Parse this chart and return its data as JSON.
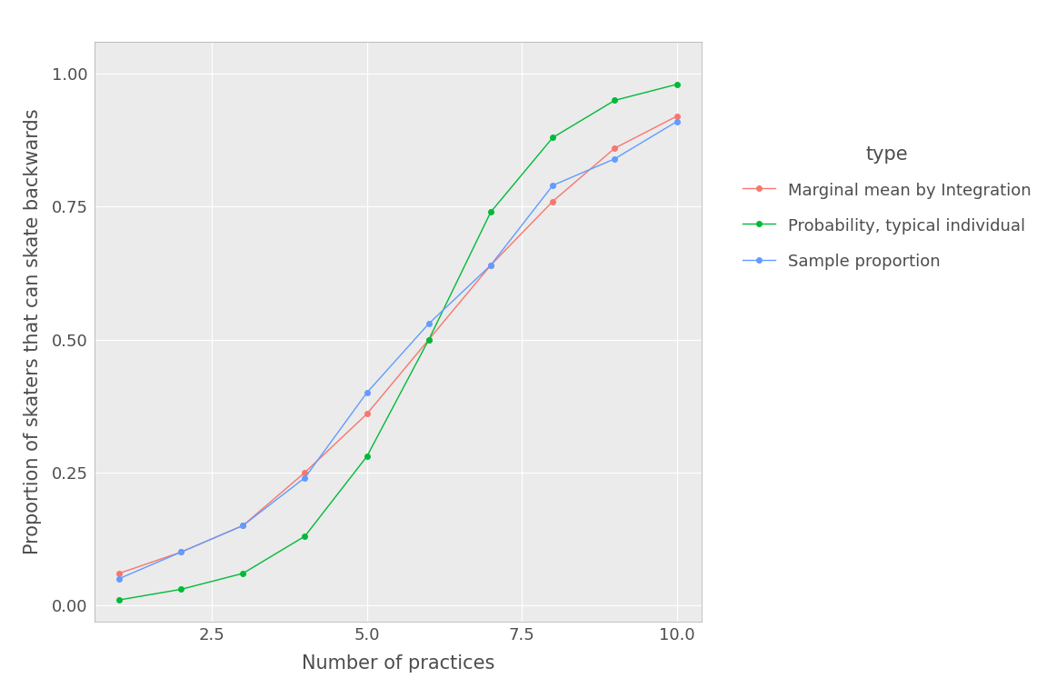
{
  "x": [
    1,
    2,
    3,
    4,
    5,
    6,
    7,
    8,
    9,
    10
  ],
  "marginal_integration": [
    0.06,
    0.1,
    0.15,
    0.25,
    0.36,
    0.5,
    0.64,
    0.76,
    0.86,
    0.92
  ],
  "typical_individual": [
    0.01,
    0.03,
    0.06,
    0.13,
    0.28,
    0.5,
    0.74,
    0.88,
    0.95,
    0.98
  ],
  "sample_proportion": [
    0.05,
    0.1,
    0.15,
    0.24,
    0.4,
    0.53,
    0.64,
    0.79,
    0.84,
    0.91
  ],
  "color_marginal": "#F8766D",
  "color_typical": "#00BA38",
  "color_sample": "#619CFF",
  "legend_title": "type",
  "legend_labels": [
    "Marginal mean by Integration",
    "Probability, typical individual",
    "Sample proportion"
  ],
  "xlabel": "Number of practices",
  "ylabel": "Proportion of skaters that can skate backwards",
  "xlim": [
    0.6,
    10.4
  ],
  "ylim": [
    -0.03,
    1.06
  ],
  "xticks": [
    2.5,
    5.0,
    7.5,
    10.0
  ],
  "yticks": [
    0.0,
    0.25,
    0.5,
    0.75,
    1.0
  ],
  "bg_color": "#EBEBEB",
  "grid_color": "#FFFFFF",
  "marker_size": 4,
  "line_width": 1.0,
  "title_color": "#4D4D4D",
  "axis_label_color": "#4D4D4D",
  "tick_label_color": "#4D4D4D"
}
